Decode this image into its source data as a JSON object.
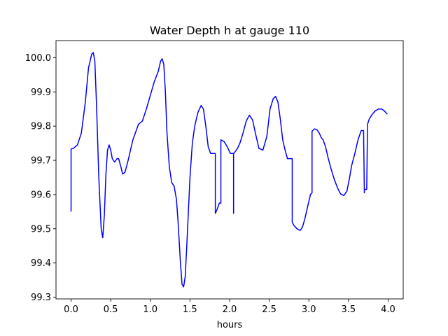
{
  "chart_data": {
    "type": "line",
    "title": "Water Depth h at gauge 110",
    "xlabel": "hours",
    "ylabel": "",
    "xlim": [
      -0.19,
      4.19
    ],
    "ylim": [
      99.295,
      100.05
    ],
    "xticks": [
      0.0,
      0.5,
      1.0,
      1.5,
      2.0,
      2.5,
      3.0,
      3.5,
      4.0
    ],
    "xtick_labels": [
      "0.0",
      "0.5",
      "1.0",
      "1.5",
      "2.0",
      "2.5",
      "3.0",
      "3.5",
      "4.0"
    ],
    "yticks": [
      99.3,
      99.4,
      99.5,
      99.6,
      99.7,
      99.8,
      99.9,
      100.0
    ],
    "ytick_labels": [
      "99.3",
      "99.4",
      "99.5",
      "99.6",
      "99.7",
      "99.8",
      "99.9",
      "100.0"
    ],
    "grid": false,
    "series": [
      {
        "color": "#0000ff",
        "x": [
          0.0,
          0.0,
          0.03,
          0.08,
          0.13,
          0.18,
          0.22,
          0.26,
          0.28,
          0.3,
          0.32,
          0.35,
          0.38,
          0.4,
          0.42,
          0.44,
          0.46,
          0.48,
          0.5,
          0.52,
          0.55,
          0.58,
          0.6,
          0.63,
          0.65,
          0.68,
          0.72,
          0.78,
          0.85,
          0.9,
          0.95,
          1.0,
          1.05,
          1.1,
          1.13,
          1.15,
          1.17,
          1.19,
          1.21,
          1.24,
          1.27,
          1.3,
          1.33,
          1.35,
          1.38,
          1.4,
          1.42,
          1.44,
          1.46,
          1.48,
          1.5,
          1.53,
          1.56,
          1.6,
          1.64,
          1.67,
          1.7,
          1.73,
          1.76,
          1.78,
          1.8,
          1.82,
          1.82,
          1.84,
          1.87,
          1.88,
          1.89,
          1.89,
          1.93,
          1.97,
          2.01,
          2.03,
          2.05,
          2.05,
          2.05,
          2.05,
          2.07,
          2.1,
          2.13,
          2.17,
          2.21,
          2.25,
          2.29,
          2.33,
          2.37,
          2.42,
          2.47,
          2.51,
          2.55,
          2.58,
          2.61,
          2.64,
          2.67,
          2.7,
          2.73,
          2.77,
          2.79,
          2.79,
          2.81,
          2.85,
          2.89,
          2.92,
          2.95,
          2.98,
          3.02,
          3.04,
          3.04,
          3.04,
          3.07,
          3.1,
          3.13,
          3.15,
          3.16,
          3.18,
          3.21,
          3.24,
          3.28,
          3.32,
          3.36,
          3.4,
          3.44,
          3.48,
          3.51,
          3.54,
          3.58,
          3.62,
          3.66,
          3.69,
          3.7,
          3.7,
          3.73,
          3.73,
          3.74,
          3.76,
          3.8,
          3.84,
          3.88,
          3.92,
          3.95,
          3.97,
          3.99
        ],
        "y": [
          99.55,
          99.733,
          99.735,
          99.745,
          99.78,
          99.87,
          99.97,
          100.01,
          100.015,
          99.99,
          99.87,
          99.65,
          99.5,
          99.474,
          99.54,
          99.66,
          99.73,
          99.745,
          99.73,
          99.705,
          99.695,
          99.705,
          99.705,
          99.68,
          99.66,
          99.665,
          99.7,
          99.76,
          99.805,
          99.815,
          99.85,
          99.89,
          99.93,
          99.96,
          99.99,
          99.997,
          99.98,
          99.9,
          99.78,
          99.68,
          99.635,
          99.625,
          99.585,
          99.52,
          99.4,
          99.338,
          99.33,
          99.36,
          99.45,
          99.55,
          99.65,
          99.75,
          99.8,
          99.84,
          99.86,
          99.85,
          99.8,
          99.74,
          99.72,
          99.72,
          99.72,
          99.72,
          99.545,
          99.555,
          99.575,
          99.575,
          99.575,
          99.76,
          99.755,
          99.74,
          99.72,
          99.72,
          99.72,
          99.545,
          99.72,
          99.72,
          99.725,
          99.735,
          99.75,
          99.78,
          99.815,
          99.832,
          99.818,
          99.775,
          99.735,
          99.73,
          99.77,
          99.85,
          99.88,
          99.887,
          99.87,
          99.82,
          99.76,
          99.73,
          99.705,
          99.705,
          99.705,
          99.52,
          99.51,
          99.5,
          99.495,
          99.505,
          99.53,
          99.56,
          99.6,
          99.605,
          99.605,
          99.785,
          99.792,
          99.79,
          99.78,
          99.77,
          99.765,
          99.76,
          99.74,
          99.71,
          99.675,
          99.645,
          99.62,
          99.602,
          99.597,
          99.61,
          99.645,
          99.685,
          99.72,
          99.76,
          99.787,
          99.787,
          99.605,
          99.615,
          99.615,
          99.615,
          99.805,
          99.82,
          99.835,
          99.845,
          99.85,
          99.85,
          99.845,
          99.84,
          99.835
        ]
      }
    ]
  }
}
